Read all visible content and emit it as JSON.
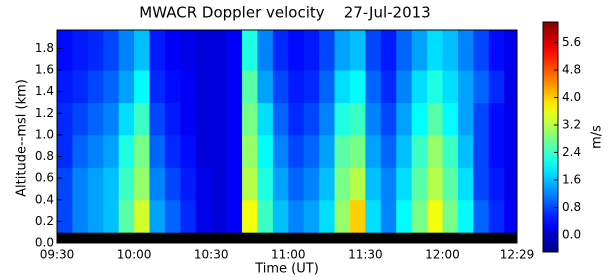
{
  "chart_data": {
    "type": "heatmap",
    "title": "MWACR Doppler velocity    27-Jul-2013",
    "x_label": "Time (UT)",
    "y_label": "Altitude--msl (km)",
    "colorbar_label": "m/s",
    "xlim": [
      570,
      749
    ],
    "xticks": [
      {
        "value": 570,
        "label": "09:30"
      },
      {
        "value": 600,
        "label": "10:00"
      },
      {
        "value": 630,
        "label": "10:30"
      },
      {
        "value": 660,
        "label": "11:00"
      },
      {
        "value": 690,
        "label": "11:30"
      },
      {
        "value": 720,
        "label": "12:00"
      },
      {
        "value": 749,
        "label": "12:29"
      }
    ],
    "ylim": [
      0,
      1.97
    ],
    "yticks": [
      {
        "value": 0,
        "label": "0.0"
      },
      0.2,
      0.4,
      0.6,
      0.8,
      {
        "value": 1,
        "label": "1.0"
      },
      1.2,
      1.4,
      1.6,
      1.8
    ],
    "zlim": [
      -0.5,
      6.2
    ],
    "zticks": [
      {
        "value": 0,
        "label": "0.0"
      },
      0.8,
      1.6,
      2.4,
      3.2,
      {
        "value": 4,
        "label": "4.0"
      },
      4.8,
      5.6
    ],
    "colormap": "jet",
    "x": [
      570,
      576,
      582,
      588,
      594,
      600,
      606,
      612,
      618,
      624,
      630,
      636,
      642,
      648,
      654,
      660,
      666,
      672,
      678,
      684,
      690,
      696,
      702,
      708,
      714,
      720,
      726,
      732,
      738,
      744
    ],
    "y": [
      0.1,
      0.4,
      0.7,
      1.0,
      1.3,
      1.6
    ],
    "z": [
      [
        0.8,
        1.2,
        1.4,
        1.6,
        2.6,
        3.4,
        1.4,
        1.0,
        0.6,
        0.2,
        0.1,
        0.3,
        3.6,
        2.4,
        1.6,
        1.2,
        1.4,
        1.8,
        3.0,
        4.0,
        1.8,
        1.2,
        2.0,
        2.8,
        3.6,
        2.8,
        2.0,
        1.0,
        0.6,
        0.3
      ],
      [
        0.8,
        1.2,
        1.4,
        1.6,
        2.4,
        3.0,
        1.2,
        0.8,
        0.5,
        0.2,
        0.1,
        0.3,
        3.2,
        2.2,
        1.4,
        1.0,
        1.2,
        1.6,
        2.8,
        3.2,
        1.6,
        1.2,
        1.8,
        2.6,
        3.2,
        2.6,
        1.8,
        0.8,
        0.5,
        0.2
      ],
      [
        0.6,
        1.0,
        1.2,
        1.4,
        2.2,
        2.8,
        1.0,
        0.6,
        0.4,
        0.1,
        0.1,
        0.3,
        3.0,
        2.0,
        1.2,
        0.8,
        1.0,
        1.4,
        2.6,
        2.8,
        1.4,
        1.0,
        1.6,
        2.4,
        3.0,
        2.4,
        1.6,
        0.8,
        0.4,
        0.2
      ],
      [
        0.6,
        0.8,
        1.0,
        1.2,
        1.8,
        2.4,
        0.8,
        0.5,
        0.3,
        0.1,
        0.1,
        0.3,
        2.8,
        1.8,
        1.0,
        0.6,
        0.8,
        1.2,
        2.2,
        2.4,
        1.2,
        0.8,
        1.4,
        2.0,
        2.6,
        2.0,
        1.4,
        0.8,
        0.4,
        0.2
      ],
      [
        0.5,
        0.6,
        0.8,
        1.0,
        1.4,
        2.0,
        0.6,
        0.4,
        0.3,
        0.1,
        0.1,
        0.3,
        2.6,
        1.4,
        0.8,
        0.5,
        0.6,
        1.0,
        1.8,
        2.0,
        1.0,
        0.6,
        1.2,
        1.8,
        2.2,
        1.8,
        1.4,
        1.0,
        0.6,
        0.2
      ],
      [
        0.4,
        0.5,
        0.6,
        0.8,
        1.2,
        1.6,
        0.5,
        0.3,
        0.2,
        0.1,
        0.1,
        0.3,
        2.2,
        1.2,
        0.6,
        0.4,
        0.5,
        0.8,
        1.4,
        1.6,
        0.8,
        0.5,
        1.0,
        1.4,
        1.8,
        1.6,
        1.2,
        0.8,
        0.4,
        0.2
      ]
    ]
  }
}
